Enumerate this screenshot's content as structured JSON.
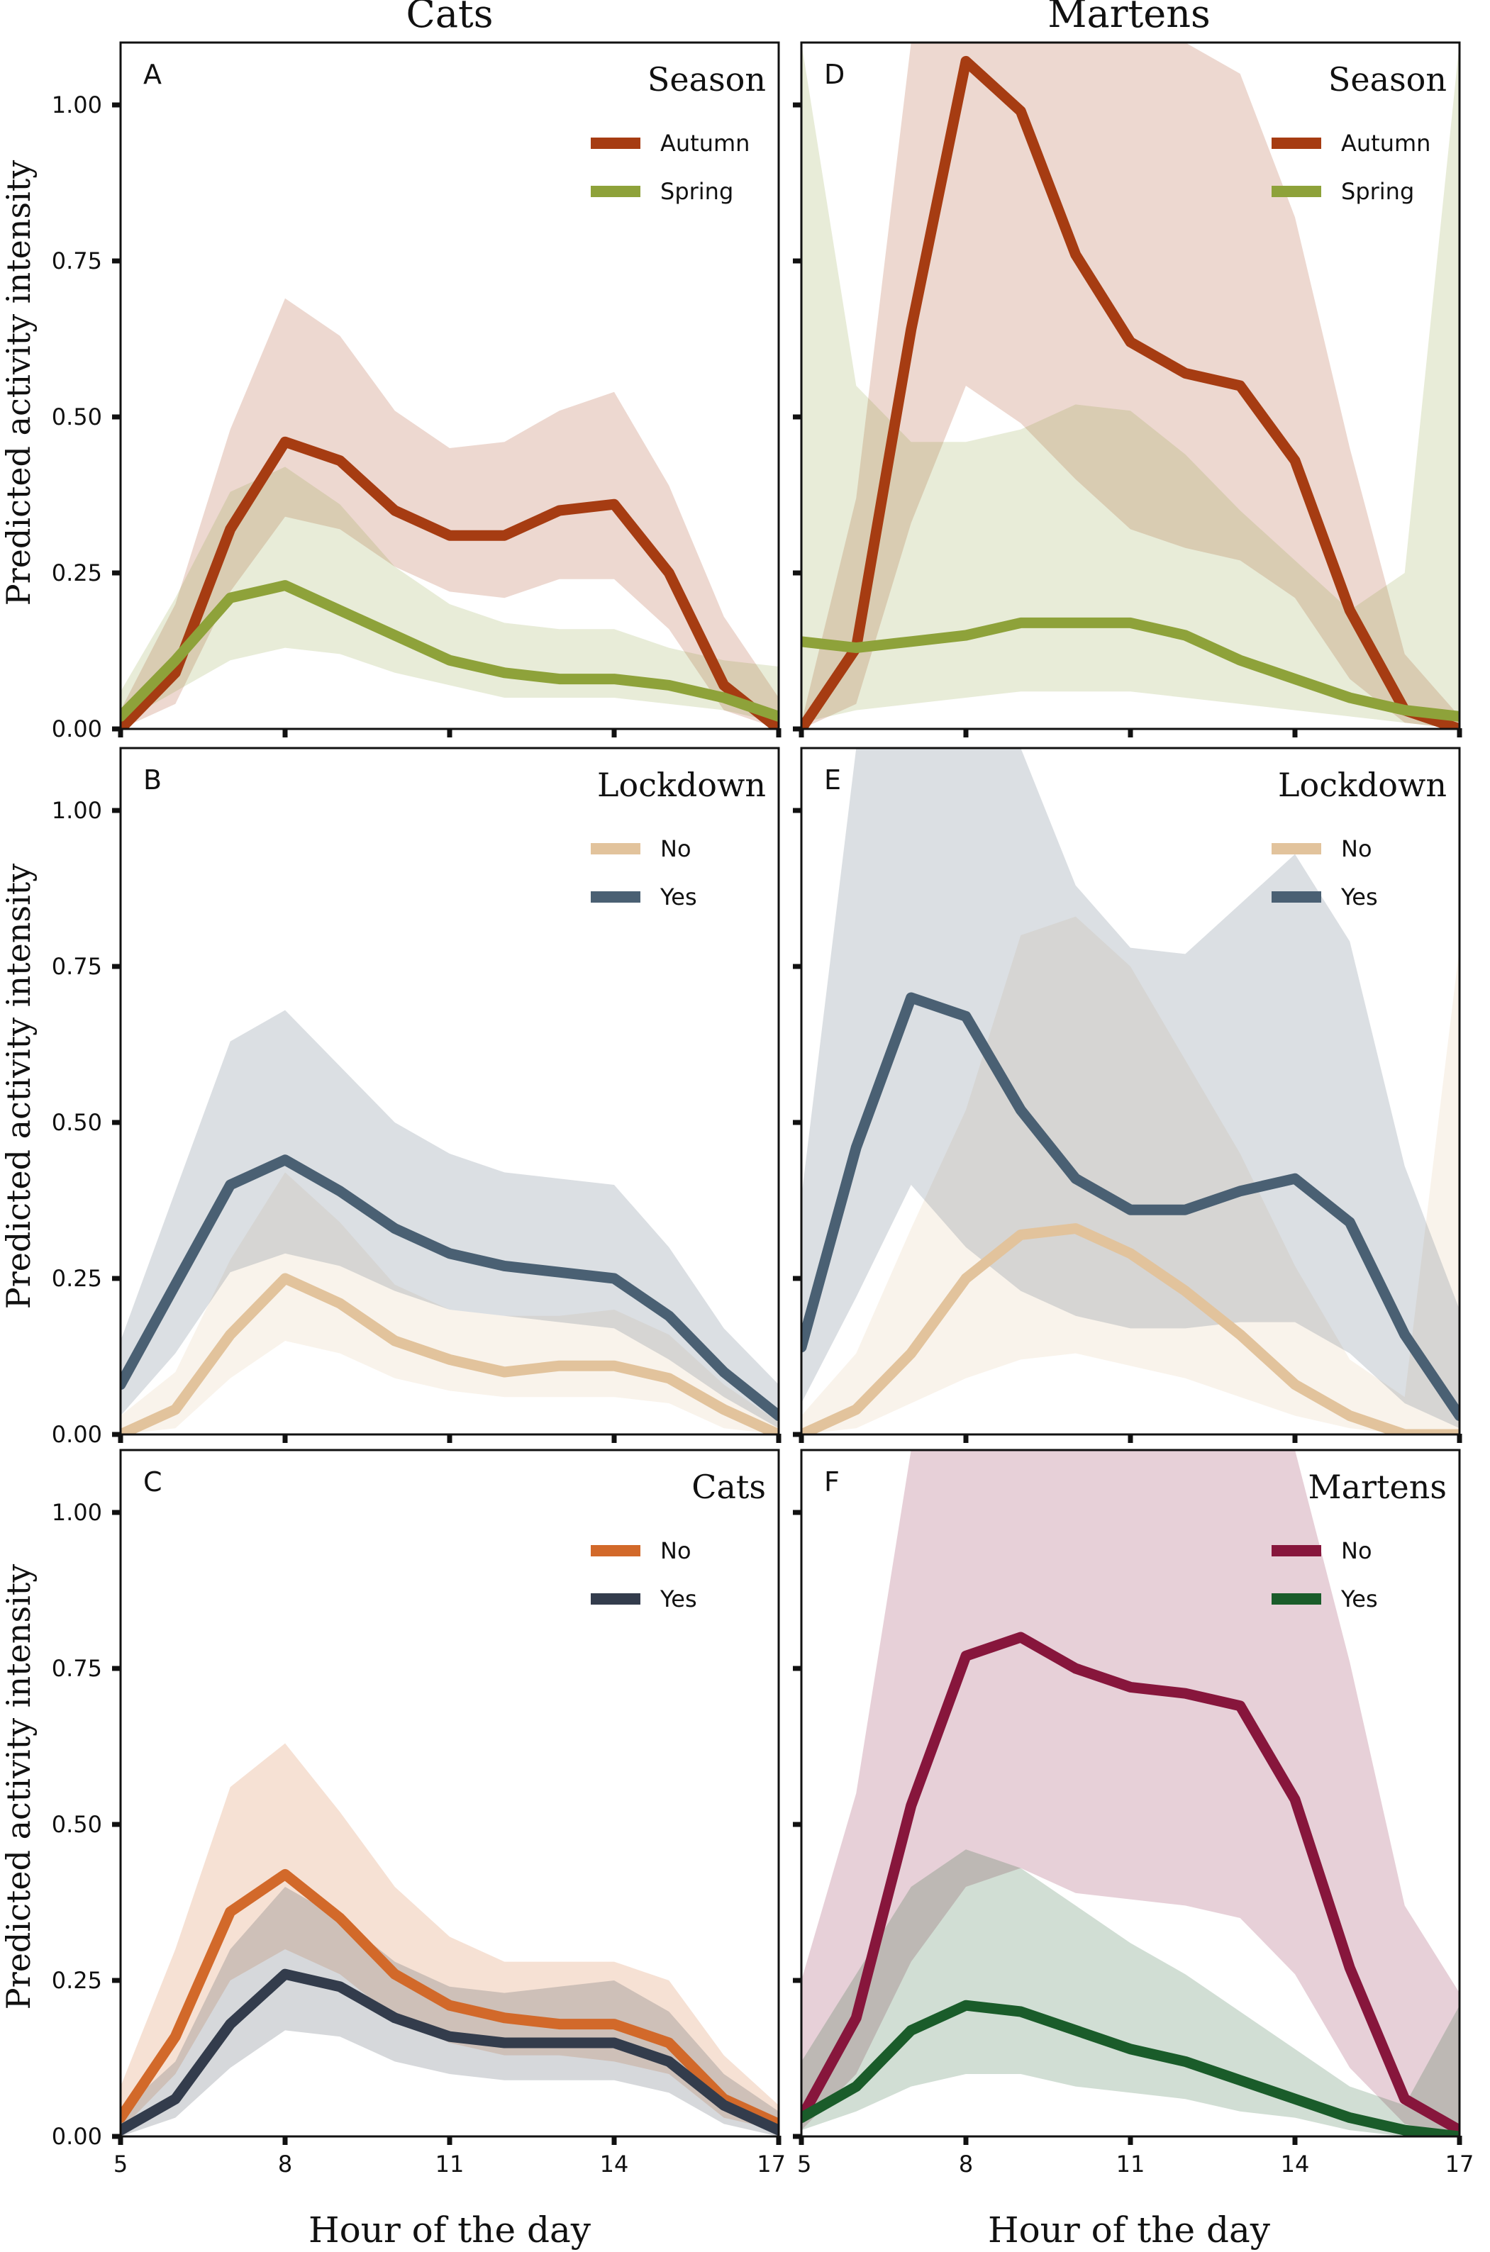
{
  "figure": {
    "column_titles": [
      "Cats",
      "Martens"
    ],
    "y_axis_label": "Predicted activity intensity",
    "x_axis_label": "Hour of the day"
  },
  "chart_data": [
    {
      "type": "line",
      "panel": "A",
      "legend_title": "Season",
      "x": [
        5,
        6,
        7,
        8,
        9,
        10,
        11,
        12,
        13,
        14,
        15,
        16,
        17
      ],
      "xlim": [
        5,
        17
      ],
      "ylim": [
        0,
        1.1
      ],
      "xticks": [
        "5",
        "8",
        "11",
        "14",
        "17"
      ],
      "yticks": [
        "0.00",
        "0.25",
        "0.50",
        "0.75",
        "1.00"
      ],
      "series": [
        {
          "name": "Autumn",
          "color": "#a63c12",
          "values": [
            0.0,
            0.09,
            0.32,
            0.46,
            0.43,
            0.35,
            0.31,
            0.31,
            0.35,
            0.36,
            0.25,
            0.07,
            0.0
          ],
          "lower": [
            0.0,
            0.04,
            0.22,
            0.34,
            0.32,
            0.26,
            0.22,
            0.21,
            0.24,
            0.24,
            0.16,
            0.03,
            0.0
          ],
          "upper": [
            0.03,
            0.2,
            0.48,
            0.69,
            0.63,
            0.51,
            0.45,
            0.46,
            0.51,
            0.54,
            0.39,
            0.18,
            0.05
          ]
        },
        {
          "name": "Spring",
          "color": "#8ea23a",
          "values": [
            0.02,
            0.11,
            0.21,
            0.23,
            0.19,
            0.15,
            0.11,
            0.09,
            0.08,
            0.08,
            0.07,
            0.05,
            0.02
          ],
          "lower": [
            0.01,
            0.06,
            0.11,
            0.13,
            0.12,
            0.09,
            0.07,
            0.05,
            0.05,
            0.05,
            0.04,
            0.03,
            0.01
          ],
          "upper": [
            0.06,
            0.21,
            0.38,
            0.42,
            0.36,
            0.26,
            0.2,
            0.17,
            0.16,
            0.16,
            0.13,
            0.11,
            0.1
          ]
        }
      ]
    },
    {
      "type": "line",
      "panel": "B",
      "legend_title": "Lockdown",
      "x": [
        5,
        6,
        7,
        8,
        9,
        10,
        11,
        12,
        13,
        14,
        15,
        16,
        17
      ],
      "xlim": [
        5,
        17
      ],
      "ylim": [
        0,
        1.1
      ],
      "xticks": [
        "5",
        "8",
        "11",
        "14",
        "17"
      ],
      "yticks": [
        "0.00",
        "0.25",
        "0.50",
        "0.75",
        "1.00"
      ],
      "series": [
        {
          "name": "No",
          "color": "#e2c39c",
          "values": [
            0.0,
            0.04,
            0.16,
            0.25,
            0.21,
            0.15,
            0.12,
            0.1,
            0.11,
            0.11,
            0.09,
            0.04,
            0.0
          ],
          "lower": [
            0.0,
            0.01,
            0.09,
            0.15,
            0.13,
            0.09,
            0.07,
            0.06,
            0.06,
            0.06,
            0.05,
            0.01,
            0.0
          ],
          "upper": [
            0.03,
            0.1,
            0.28,
            0.42,
            0.34,
            0.24,
            0.2,
            0.19,
            0.19,
            0.2,
            0.16,
            0.08,
            0.02
          ]
        },
        {
          "name": "Yes",
          "color": "#4a6073",
          "values": [
            0.08,
            0.24,
            0.4,
            0.44,
            0.39,
            0.33,
            0.29,
            0.27,
            0.26,
            0.25,
            0.19,
            0.1,
            0.03
          ],
          "lower": [
            0.03,
            0.13,
            0.26,
            0.29,
            0.27,
            0.23,
            0.2,
            0.19,
            0.18,
            0.17,
            0.12,
            0.06,
            0.01
          ],
          "upper": [
            0.15,
            0.39,
            0.63,
            0.68,
            0.59,
            0.5,
            0.45,
            0.42,
            0.41,
            0.4,
            0.3,
            0.17,
            0.08
          ]
        }
      ]
    },
    {
      "type": "line",
      "panel": "C",
      "legend_title": "Cats",
      "x": [
        5,
        6,
        7,
        8,
        9,
        10,
        11,
        12,
        13,
        14,
        15,
        16,
        17
      ],
      "xlim": [
        5,
        17
      ],
      "ylim": [
        0,
        1.1
      ],
      "xticks": [
        "5",
        "8",
        "11",
        "14",
        "17"
      ],
      "yticks": [
        "0.00",
        "0.25",
        "0.50",
        "0.75",
        "1.00"
      ],
      "series": [
        {
          "name": "No",
          "color": "#d2692a",
          "values": [
            0.03,
            0.16,
            0.36,
            0.42,
            0.35,
            0.26,
            0.21,
            0.19,
            0.18,
            0.18,
            0.15,
            0.06,
            0.02
          ],
          "lower": [
            0.01,
            0.1,
            0.25,
            0.3,
            0.26,
            0.19,
            0.15,
            0.13,
            0.13,
            0.12,
            0.1,
            0.03,
            0.01
          ],
          "upper": [
            0.08,
            0.3,
            0.56,
            0.63,
            0.52,
            0.4,
            0.32,
            0.28,
            0.28,
            0.28,
            0.25,
            0.13,
            0.05
          ]
        },
        {
          "name": "Yes",
          "color": "#333c4c",
          "values": [
            0.01,
            0.06,
            0.18,
            0.26,
            0.24,
            0.19,
            0.16,
            0.15,
            0.15,
            0.15,
            0.12,
            0.05,
            0.01
          ],
          "lower": [
            0.0,
            0.03,
            0.11,
            0.17,
            0.16,
            0.12,
            0.1,
            0.09,
            0.09,
            0.09,
            0.07,
            0.02,
            0.0
          ],
          "upper": [
            0.04,
            0.12,
            0.3,
            0.4,
            0.35,
            0.28,
            0.24,
            0.23,
            0.24,
            0.25,
            0.2,
            0.1,
            0.04
          ]
        }
      ]
    },
    {
      "type": "line",
      "panel": "D",
      "legend_title": "Season",
      "x": [
        5,
        6,
        7,
        8,
        9,
        10,
        11,
        12,
        13,
        14,
        15,
        16,
        17
      ],
      "xlim": [
        5,
        17
      ],
      "ylim": [
        0,
        1.1
      ],
      "xticks": [
        "5",
        "8",
        "11",
        "14",
        "17"
      ],
      "yticks": [
        "0.00",
        "0.25",
        "0.50",
        "0.75",
        "1.00"
      ],
      "series": [
        {
          "name": "Autumn",
          "color": "#a63c12",
          "values": [
            0.0,
            0.13,
            0.64,
            1.07,
            0.99,
            0.76,
            0.62,
            0.57,
            0.55,
            0.43,
            0.19,
            0.03,
            0.0
          ],
          "lower": [
            0.0,
            0.04,
            0.33,
            0.55,
            0.49,
            0.4,
            0.32,
            0.29,
            0.27,
            0.21,
            0.08,
            0.01,
            0.0
          ],
          "upper": [
            0.01,
            0.37,
            1.1,
            1.1,
            1.1,
            1.1,
            1.1,
            1.1,
            1.05,
            0.82,
            0.45,
            0.12,
            0.02
          ]
        },
        {
          "name": "Spring",
          "color": "#8ea23a",
          "values": [
            0.14,
            0.13,
            0.14,
            0.15,
            0.17,
            0.17,
            0.17,
            0.15,
            0.11,
            0.08,
            0.05,
            0.03,
            0.02
          ],
          "lower": [
            0.01,
            0.03,
            0.04,
            0.05,
            0.06,
            0.06,
            0.06,
            0.05,
            0.04,
            0.03,
            0.02,
            0.01,
            0.0
          ],
          "upper": [
            1.1,
            0.55,
            0.46,
            0.46,
            0.48,
            0.52,
            0.51,
            0.44,
            0.35,
            0.27,
            0.19,
            0.25,
            1.1
          ]
        }
      ]
    },
    {
      "type": "line",
      "panel": "E",
      "legend_title": "Lockdown",
      "x": [
        5,
        6,
        7,
        8,
        9,
        10,
        11,
        12,
        13,
        14,
        15,
        16,
        17
      ],
      "xlim": [
        5,
        17
      ],
      "ylim": [
        0,
        1.1
      ],
      "xticks": [
        "5",
        "8",
        "11",
        "14",
        "17"
      ],
      "yticks": [
        "0.00",
        "0.25",
        "0.50",
        "0.75",
        "1.00"
      ],
      "series": [
        {
          "name": "No",
          "color": "#e2c39c",
          "values": [
            0.0,
            0.04,
            0.13,
            0.25,
            0.32,
            0.33,
            0.29,
            0.23,
            0.16,
            0.08,
            0.03,
            0.0,
            0.0
          ],
          "lower": [
            0.0,
            0.01,
            0.05,
            0.09,
            0.12,
            0.13,
            0.11,
            0.09,
            0.06,
            0.03,
            0.01,
            0.0,
            0.0
          ],
          "upper": [
            0.03,
            0.13,
            0.33,
            0.52,
            0.8,
            0.83,
            0.75,
            0.6,
            0.45,
            0.27,
            0.12,
            0.06,
            0.78
          ]
        },
        {
          "name": "Yes",
          "color": "#4a6073",
          "values": [
            0.14,
            0.46,
            0.7,
            0.67,
            0.52,
            0.41,
            0.36,
            0.36,
            0.39,
            0.41,
            0.34,
            0.16,
            0.03
          ],
          "lower": [
            0.05,
            0.22,
            0.4,
            0.3,
            0.23,
            0.19,
            0.17,
            0.17,
            0.18,
            0.18,
            0.13,
            0.05,
            0.01
          ],
          "upper": [
            0.38,
            1.1,
            1.1,
            1.1,
            1.1,
            0.88,
            0.78,
            0.77,
            0.85,
            0.93,
            0.79,
            0.43,
            0.2
          ]
        }
      ]
    },
    {
      "type": "line",
      "panel": "F",
      "legend_title": "Martens",
      "x": [
        5,
        6,
        7,
        8,
        9,
        10,
        11,
        12,
        13,
        14,
        15,
        16,
        17
      ],
      "xlim": [
        5,
        17
      ],
      "ylim": [
        0,
        1.1
      ],
      "xticks": [
        "5",
        "8",
        "11",
        "14",
        "17"
      ],
      "yticks": [
        "0.00",
        "0.25",
        "0.50",
        "0.75",
        "1.00"
      ],
      "series": [
        {
          "name": "No",
          "color": "#87163c",
          "values": [
            0.03,
            0.19,
            0.53,
            0.77,
            0.8,
            0.75,
            0.72,
            0.71,
            0.69,
            0.54,
            0.27,
            0.06,
            0.01
          ],
          "lower": [
            0.01,
            0.1,
            0.28,
            0.4,
            0.43,
            0.39,
            0.38,
            0.37,
            0.35,
            0.26,
            0.11,
            0.02,
            0.0
          ],
          "upper": [
            0.25,
            0.55,
            1.1,
            1.1,
            1.1,
            1.1,
            1.1,
            1.1,
            1.1,
            1.1,
            0.76,
            0.37,
            0.23
          ]
        },
        {
          "name": "Yes",
          "color": "#1a5c2a",
          "values": [
            0.03,
            0.08,
            0.17,
            0.21,
            0.2,
            0.17,
            0.14,
            0.12,
            0.09,
            0.06,
            0.03,
            0.01,
            0.0
          ],
          "lower": [
            0.01,
            0.04,
            0.08,
            0.1,
            0.1,
            0.08,
            0.07,
            0.06,
            0.04,
            0.03,
            0.01,
            0.0,
            0.0
          ],
          "upper": [
            0.12,
            0.26,
            0.4,
            0.46,
            0.43,
            0.37,
            0.31,
            0.26,
            0.2,
            0.14,
            0.08,
            0.05,
            0.21
          ]
        }
      ]
    }
  ]
}
